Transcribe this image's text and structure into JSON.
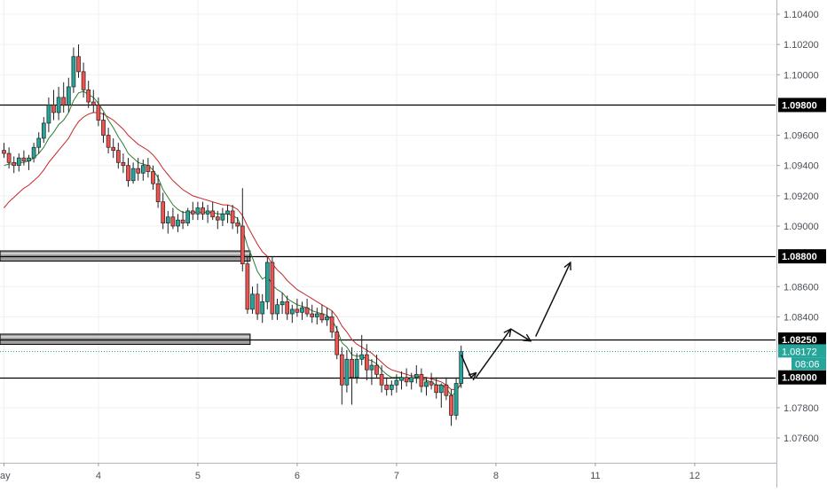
{
  "chart_data": {
    "type": "candlestick",
    "instrument_hint": "EURUSD-style price chart",
    "y_axis": {
      "range": [
        1.0745,
        1.1055
      ],
      "tick_labels": [
        "1.10400",
        "1.10200",
        "1.10000",
        "1.09800",
        "1.09600",
        "1.09400",
        "1.09200",
        "1.09000",
        "1.08800",
        "1.08600",
        "1.08400",
        "1.08250",
        "1.08172",
        "1.08000",
        "1.07800",
        "1.07600"
      ],
      "plain_ticks": [
        "1.10400",
        "1.10200",
        "1.10000",
        "1.09600",
        "1.09400",
        "1.09200",
        "1.09000",
        "1.08600",
        "1.08400",
        "1.07800",
        "1.07600"
      ]
    },
    "x_axis": {
      "tick_labels": [
        "ay",
        "4",
        "5",
        "6",
        "7",
        "8",
        "11",
        "12"
      ],
      "tick_positions_in_bars": [
        0,
        19,
        39,
        59,
        79,
        99,
        119,
        139
      ]
    },
    "levels": [
      {
        "value": 1.098,
        "label": "1.09800",
        "color": "#000000"
      },
      {
        "value": 1.088,
        "label": "1.08800",
        "color": "#000000"
      },
      {
        "value": 1.0825,
        "label": "1.08250",
        "color": "#000000"
      },
      {
        "value": 1.08,
        "label": "1.08000",
        "color": "#000000"
      }
    ],
    "zones": [
      {
        "from": 1.0878,
        "to": 1.0883,
        "start_bar": 0,
        "end_bar": 49
      },
      {
        "from": 1.0823,
        "to": 1.0828,
        "start_bar": 0,
        "end_bar": 49
      }
    ],
    "current_price": {
      "label": "1.08172",
      "value": 1.08172,
      "color": "#26a69a"
    },
    "countdown": {
      "label": "08:06",
      "color": "#26a69a"
    },
    "colors": {
      "up": "#26a69a",
      "down": "#ef5350",
      "ema_fast": "#2e7d32",
      "ema_slow": "#c62828",
      "grid": "#eef0f3"
    },
    "candles": [
      [
        1.095,
        1.0955,
        1.0945,
        1.0948
      ],
      [
        1.0948,
        1.0952,
        1.0938,
        1.0942
      ],
      [
        1.0942,
        1.0946,
        1.0935,
        1.094
      ],
      [
        1.094,
        1.0948,
        1.0936,
        1.0945
      ],
      [
        1.0945,
        1.095,
        1.094,
        1.0943
      ],
      [
        1.0943,
        1.0947,
        1.0937,
        1.0945
      ],
      [
        1.0945,
        1.0955,
        1.0942,
        1.0952
      ],
      [
        1.0952,
        1.0962,
        1.0948,
        1.0958
      ],
      [
        1.0958,
        1.0972,
        1.0955,
        1.0968
      ],
      [
        1.0968,
        1.0985,
        1.0962,
        1.098
      ],
      [
        1.098,
        1.099,
        1.097,
        1.0975
      ],
      [
        1.0975,
        1.0992,
        1.097,
        1.0985
      ],
      [
        1.0985,
        1.0995,
        1.0975,
        1.098
      ],
      [
        1.098,
        1.0998,
        1.0975,
        1.0992
      ],
      [
        1.0992,
        1.1018,
        1.0988,
        1.1012
      ],
      [
        1.1012,
        1.102,
        1.0998,
        1.1002
      ],
      [
        1.1002,
        1.1008,
        1.0985,
        1.099
      ],
      [
        1.099,
        1.0996,
        1.0978,
        1.0982
      ],
      [
        1.0982,
        1.099,
        1.0975,
        1.098
      ],
      [
        1.098,
        1.0985,
        1.0966,
        1.097
      ],
      [
        1.097,
        1.0975,
        1.0955,
        1.096
      ],
      [
        1.096,
        1.0965,
        1.0948,
        1.0952
      ],
      [
        1.0952,
        1.0958,
        1.0945,
        1.095
      ],
      [
        1.095,
        1.0955,
        1.0938,
        1.0942
      ],
      [
        1.0942,
        1.0948,
        1.0935,
        1.094
      ],
      [
        1.094,
        1.0945,
        1.0926,
        1.093
      ],
      [
        1.093,
        1.0942,
        1.0928,
        1.0938
      ],
      [
        1.0938,
        1.0945,
        1.093,
        1.0935
      ],
      [
        1.0935,
        1.0944,
        1.093,
        1.094
      ],
      [
        1.094,
        1.0945,
        1.0932,
        1.0936
      ],
      [
        1.0936,
        1.094,
        1.0924,
        1.0928
      ],
      [
        1.0928,
        1.0934,
        1.0912,
        1.0916
      ],
      [
        1.0916,
        1.0922,
        1.0898,
        1.0902
      ],
      [
        1.0902,
        1.091,
        1.0895,
        1.0906
      ],
      [
        1.0906,
        1.0912,
        1.0898,
        1.09
      ],
      [
        1.09,
        1.0908,
        1.0896,
        1.0904
      ],
      [
        1.0904,
        1.091,
        1.0898,
        1.0902
      ],
      [
        1.0902,
        1.0912,
        1.09,
        1.091
      ],
      [
        1.091,
        1.0916,
        1.0904,
        1.0908
      ],
      [
        1.0908,
        1.0916,
        1.0904,
        1.0912
      ],
      [
        1.0912,
        1.0916,
        1.0904,
        1.0908
      ],
      [
        1.0908,
        1.0914,
        1.0902,
        1.091
      ],
      [
        1.091,
        1.0916,
        1.0904,
        1.0906
      ],
      [
        1.0906,
        1.091,
        1.0898,
        1.0904
      ],
      [
        1.0904,
        1.0912,
        1.09,
        1.0908
      ],
      [
        1.0908,
        1.0914,
        1.0902,
        1.091
      ],
      [
        1.091,
        1.0914,
        1.0898,
        1.0902
      ],
      [
        1.0902,
        1.0906,
        1.0895,
        1.09
      ],
      [
        1.09,
        1.0925,
        1.087,
        1.0875
      ],
      [
        1.0875,
        1.088,
        1.0842,
        1.0845
      ],
      [
        1.0845,
        1.086,
        1.0842,
        1.0855
      ],
      [
        1.0855,
        1.0862,
        1.0838,
        1.0842
      ],
      [
        1.0842,
        1.0855,
        1.0836,
        1.085
      ],
      [
        1.085,
        1.088,
        1.0845,
        1.0876
      ],
      [
        1.0876,
        1.088,
        1.0838,
        1.0842
      ],
      [
        1.0842,
        1.0852,
        1.0838,
        1.0848
      ],
      [
        1.0848,
        1.0856,
        1.0842,
        1.085
      ],
      [
        1.085,
        1.0854,
        1.0838,
        1.0842
      ],
      [
        1.0842,
        1.0848,
        1.0836,
        1.0845
      ],
      [
        1.0845,
        1.0852,
        1.084,
        1.0843
      ],
      [
        1.0843,
        1.085,
        1.0838,
        1.0846
      ],
      [
        1.0846,
        1.0852,
        1.084,
        1.0842
      ],
      [
        1.0842,
        1.0848,
        1.0836,
        1.084
      ],
      [
        1.084,
        1.0846,
        1.0835,
        1.0842
      ],
      [
        1.0842,
        1.0848,
        1.0836,
        1.0838
      ],
      [
        1.0838,
        1.0846,
        1.0834,
        1.084
      ],
      [
        1.084,
        1.0844,
        1.0826,
        1.083
      ],
      [
        1.083,
        1.0834,
        1.0812,
        1.0815
      ],
      [
        1.0815,
        1.082,
        1.0782,
        1.0795
      ],
      [
        1.0795,
        1.0818,
        1.079,
        1.0812
      ],
      [
        1.0812,
        1.082,
        1.0782,
        1.08
      ],
      [
        1.08,
        1.0816,
        1.0796,
        1.0812
      ],
      [
        1.0812,
        1.0828,
        1.0808,
        1.0815
      ],
      [
        1.0815,
        1.0822,
        1.0798,
        1.0805
      ],
      [
        1.0805,
        1.0812,
        1.0795,
        1.0808
      ],
      [
        1.0808,
        1.0815,
        1.08,
        1.0802
      ],
      [
        1.0802,
        1.0808,
        1.079,
        1.0795
      ],
      [
        1.0795,
        1.08,
        1.0788,
        1.0792
      ],
      [
        1.0792,
        1.0798,
        1.0788,
        1.0795
      ],
      [
        1.0795,
        1.0802,
        1.079,
        1.0798
      ],
      [
        1.0798,
        1.0804,
        1.0792,
        1.08
      ],
      [
        1.08,
        1.0806,
        1.0794,
        1.0797
      ],
      [
        1.0797,
        1.0803,
        1.0792,
        1.08
      ],
      [
        1.08,
        1.0808,
        1.0796,
        1.0802
      ],
      [
        1.0802,
        1.0806,
        1.079,
        1.0794
      ],
      [
        1.0794,
        1.08,
        1.0788,
        1.0797
      ],
      [
        1.0797,
        1.0803,
        1.0792,
        1.0795
      ],
      [
        1.0795,
        1.08,
        1.0786,
        1.079
      ],
      [
        1.079,
        1.0796,
        1.078,
        1.0795
      ],
      [
        1.0795,
        1.08,
        1.0785,
        1.0788
      ],
      [
        1.0788,
        1.0792,
        1.0768,
        1.0775
      ],
      [
        1.0775,
        1.08,
        1.0772,
        1.0796
      ],
      [
        1.0796,
        1.0821,
        1.0793,
        1.0817
      ]
    ],
    "ema_fast": [
      1.094,
      1.0941,
      1.0941,
      1.0942,
      1.0942,
      1.0943,
      1.0945,
      1.0948,
      1.0952,
      1.0958,
      1.0962,
      1.0967,
      1.097,
      1.0975,
      1.0983,
      1.0988,
      1.0989,
      1.0987,
      1.0985,
      1.0981,
      1.0976,
      1.097,
      1.0965,
      1.0959,
      1.0954,
      1.0948,
      1.0945,
      1.0942,
      1.0941,
      1.094,
      1.0937,
      1.0932,
      1.0924,
      1.0919,
      1.0914,
      1.0911,
      1.0909,
      1.0909,
      1.0909,
      1.0909,
      1.0909,
      1.0909,
      1.0909,
      1.0908,
      1.0908,
      1.0908,
      1.0907,
      1.0905,
      1.0898,
      1.0887,
      1.0879,
      1.087,
      1.0865,
      1.0867,
      1.0861,
      1.0858,
      1.0856,
      1.0852,
      1.085,
      1.0848,
      1.0847,
      1.0846,
      1.0844,
      1.0843,
      1.0842,
      1.0841,
      1.0838,
      1.0832,
      1.0823,
      1.082,
      1.0815,
      1.0814,
      1.0814,
      1.0812,
      1.0811,
      1.0809,
      1.0805,
      1.0802,
      1.08,
      1.08,
      1.08,
      1.0799,
      1.0799,
      1.08,
      1.0799,
      1.0798,
      1.0797,
      1.0795,
      1.0795,
      1.0793,
      1.0788,
      1.079,
      1.0797
    ],
    "ema_slow": [
      1.0912,
      1.0916,
      1.0919,
      1.0922,
      1.0925,
      1.0927,
      1.093,
      1.0933,
      1.0937,
      1.0942,
      1.0946,
      1.095,
      1.0954,
      1.0958,
      1.0964,
      1.0969,
      1.0972,
      1.0974,
      1.0975,
      1.0975,
      1.0974,
      1.0972,
      1.097,
      1.0967,
      1.0964,
      1.096,
      1.0957,
      1.0954,
      1.0952,
      1.095,
      1.0947,
      1.0943,
      1.0938,
      1.0934,
      1.093,
      1.0927,
      1.0924,
      1.0922,
      1.092,
      1.0919,
      1.0918,
      1.0917,
      1.0916,
      1.0915,
      1.0914,
      1.0914,
      1.0913,
      1.0911,
      1.0907,
      1.09,
      1.0894,
      1.0888,
      1.0883,
      1.088,
      1.0875,
      1.0871,
      1.0868,
      1.0864,
      1.0861,
      1.0858,
      1.0856,
      1.0854,
      1.0852,
      1.085,
      1.0848,
      1.0846,
      1.0844,
      1.084,
      1.0834,
      1.083,
      1.0825,
      1.0822,
      1.082,
      1.0818,
      1.0816,
      1.0813,
      1.081,
      1.0807,
      1.0805,
      1.0804,
      1.0803,
      1.0802,
      1.0801,
      1.0801,
      1.08,
      1.08,
      1.0799,
      1.0798,
      1.0797,
      1.0795,
      1.0792,
      1.0792,
      1.0795
    ],
    "projection_arrows": [
      {
        "points": [
          [
            92,
            1.0815
          ],
          [
            94,
            1.08
          ],
          [
            95,
            1.0803
          ]
        ]
      },
      {
        "points": [
          [
            95,
            1.08
          ],
          [
            102,
            1.0832
          ]
        ]
      },
      {
        "points": [
          [
            102,
            1.0832
          ],
          [
            106,
            1.0824
          ]
        ]
      },
      {
        "points": [
          [
            107,
            1.0827
          ],
          [
            114,
            1.0876
          ]
        ]
      }
    ]
  }
}
